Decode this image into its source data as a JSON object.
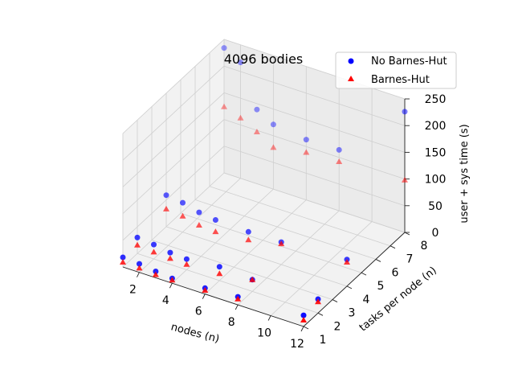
{
  "chart_data": {
    "type": "scatter",
    "projection": "3d",
    "title": "4096 bodies",
    "xlabel": "nodes (n)",
    "ylabel": "tasks per node (n)",
    "zlabel": "user + sys time (s)",
    "xlim": [
      1,
      12
    ],
    "ylim": [
      1,
      8
    ],
    "zlim": [
      0,
      250
    ],
    "xticks": [
      2,
      4,
      6,
      8,
      10,
      12
    ],
    "yticks": [
      1,
      2,
      3,
      4,
      5,
      6,
      7,
      8
    ],
    "zticks": [
      0,
      50,
      100,
      150,
      200,
      250
    ],
    "grid": true,
    "legend_position": "top-right",
    "series": [
      {
        "name": "No Barnes-Hut",
        "marker": "circle",
        "color": "#0000ff",
        "points": [
          {
            "x": 1,
            "y": 1,
            "z": 18
          },
          {
            "x": 1,
            "y": 2,
            "z": 30
          },
          {
            "x": 1,
            "y": 4,
            "z": 59
          },
          {
            "x": 1,
            "y": 8,
            "z": 234
          },
          {
            "x": 2,
            "y": 1,
            "z": 16
          },
          {
            "x": 2,
            "y": 2,
            "z": 27
          },
          {
            "x": 2,
            "y": 4,
            "z": 55
          },
          {
            "x": 2,
            "y": 8,
            "z": 217
          },
          {
            "x": 3,
            "y": 1,
            "z": 12
          },
          {
            "x": 3,
            "y": 2,
            "z": 22
          },
          {
            "x": 3,
            "y": 4,
            "z": 47
          },
          {
            "x": 3,
            "y": 8,
            "z": 139
          },
          {
            "x": 4,
            "y": 1,
            "z": 9
          },
          {
            "x": 4,
            "y": 2,
            "z": 20
          },
          {
            "x": 4,
            "y": 4,
            "z": 43
          },
          {
            "x": 4,
            "y": 8,
            "z": 121
          },
          {
            "x": 6,
            "y": 1,
            "z": 11
          },
          {
            "x": 6,
            "y": 2,
            "z": 26
          },
          {
            "x": 6,
            "y": 4,
            "z": 41
          },
          {
            "x": 6,
            "y": 8,
            "z": 113
          },
          {
            "x": 8,
            "y": 1,
            "z": 15
          },
          {
            "x": 8,
            "y": 2,
            "z": 22
          },
          {
            "x": 8,
            "y": 4,
            "z": 42
          },
          {
            "x": 8,
            "y": 8,
            "z": 114
          },
          {
            "x": 12,
            "y": 1,
            "z": 21
          },
          {
            "x": 12,
            "y": 2,
            "z": 26
          },
          {
            "x": 12,
            "y": 4,
            "z": 50
          },
          {
            "x": 12,
            "y": 8,
            "z": 226
          }
        ]
      },
      {
        "name": "Barnes-Hut",
        "marker": "triangle",
        "color": "#ff0000",
        "points": [
          {
            "x": 1,
            "y": 1,
            "z": 9
          },
          {
            "x": 1,
            "y": 2,
            "z": 16
          },
          {
            "x": 1,
            "y": 4,
            "z": 33
          },
          {
            "x": 1,
            "y": 8,
            "z": 124
          },
          {
            "x": 2,
            "y": 1,
            "z": 8
          },
          {
            "x": 2,
            "y": 2,
            "z": 13
          },
          {
            "x": 2,
            "y": 4,
            "z": 30
          },
          {
            "x": 2,
            "y": 8,
            "z": 113
          },
          {
            "x": 3,
            "y": 1,
            "z": 6
          },
          {
            "x": 3,
            "y": 2,
            "z": 11
          },
          {
            "x": 3,
            "y": 4,
            "z": 23
          },
          {
            "x": 3,
            "y": 8,
            "z": 97
          },
          {
            "x": 4,
            "y": 1,
            "z": 6
          },
          {
            "x": 4,
            "y": 2,
            "z": 10
          },
          {
            "x": 4,
            "y": 4,
            "z": 21
          },
          {
            "x": 4,
            "y": 8,
            "z": 78
          },
          {
            "x": 6,
            "y": 1,
            "z": 7
          },
          {
            "x": 6,
            "y": 2,
            "z": 13
          },
          {
            "x": 6,
            "y": 4,
            "z": 26
          },
          {
            "x": 6,
            "y": 8,
            "z": 89
          },
          {
            "x": 8,
            "y": 1,
            "z": 11
          },
          {
            "x": 8,
            "y": 2,
            "z": 22
          },
          {
            "x": 8,
            "y": 4,
            "z": 39
          },
          {
            "x": 8,
            "y": 8,
            "z": 92
          },
          {
            "x": 12,
            "y": 1,
            "z": 12
          },
          {
            "x": 12,
            "y": 2,
            "z": 21
          },
          {
            "x": 12,
            "y": 4,
            "z": 45
          },
          {
            "x": 12,
            "y": 8,
            "z": 98
          }
        ]
      }
    ]
  }
}
